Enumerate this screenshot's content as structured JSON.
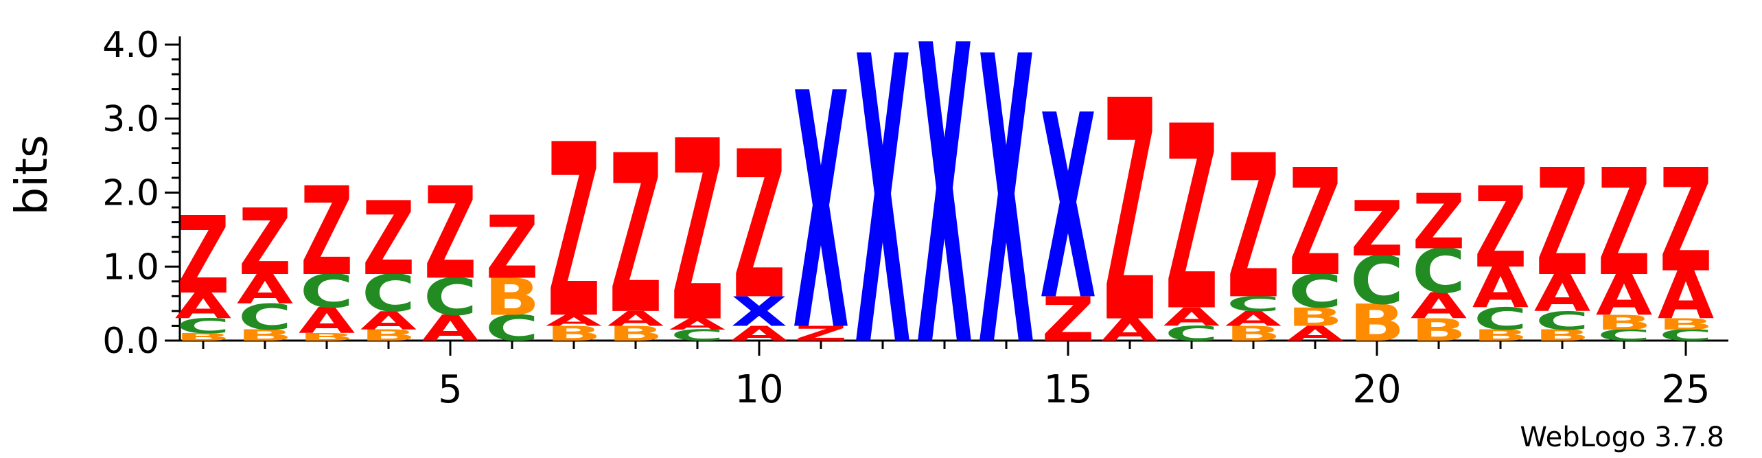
{
  "chart_data": {
    "type": "sequence-logo",
    "ylabel": "bits",
    "ylim": [
      0,
      4.0
    ],
    "yticks": [
      "0.0",
      "1.0",
      "2.0",
      "3.0",
      "4.0"
    ],
    "xticks": [
      5,
      10,
      15,
      20,
      25
    ],
    "footer": "WebLogo 3.7.8",
    "colors": {
      "Z": "#ff0000",
      "A": "#ff0000",
      "X": "#0000ff",
      "C": "#228b22",
      "B": "#ff8c00"
    },
    "positions": [
      {
        "pos": 1,
        "letters": [
          [
            "B",
            0.1
          ],
          [
            "C",
            0.2
          ],
          [
            "A",
            0.35
          ],
          [
            "Z",
            1.05
          ]
        ]
      },
      {
        "pos": 2,
        "letters": [
          [
            "B",
            0.15
          ],
          [
            "C",
            0.35
          ],
          [
            "A",
            0.4
          ],
          [
            "Z",
            0.9
          ]
        ]
      },
      {
        "pos": 3,
        "letters": [
          [
            "B",
            0.1
          ],
          [
            "A",
            0.35
          ],
          [
            "C",
            0.45
          ],
          [
            "Z",
            1.2
          ]
        ]
      },
      {
        "pos": 4,
        "letters": [
          [
            "B",
            0.15
          ],
          [
            "A",
            0.25
          ],
          [
            "C",
            0.5
          ],
          [
            "Z",
            1.0
          ]
        ]
      },
      {
        "pos": 5,
        "letters": [
          [
            "A",
            0.35
          ],
          [
            "C",
            0.5
          ],
          [
            "Z",
            1.25
          ]
        ]
      },
      {
        "pos": 6,
        "letters": [
          [
            "C",
            0.35
          ],
          [
            "B",
            0.5
          ],
          [
            "Z",
            0.85
          ]
        ]
      },
      {
        "pos": 7,
        "letters": [
          [
            "B",
            0.2
          ],
          [
            "A",
            0.15
          ],
          [
            "Z",
            2.35
          ]
        ]
      },
      {
        "pos": 8,
        "letters": [
          [
            "B",
            0.2
          ],
          [
            "A",
            0.2
          ],
          [
            "Z",
            2.15
          ]
        ]
      },
      {
        "pos": 9,
        "letters": [
          [
            "C",
            0.15
          ],
          [
            "A",
            0.15
          ],
          [
            "Z",
            2.45
          ]
        ]
      },
      {
        "pos": 10,
        "letters": [
          [
            "A",
            0.2
          ],
          [
            "X",
            0.4
          ],
          [
            "Z",
            2.0
          ]
        ]
      },
      {
        "pos": 11,
        "letters": [
          [
            "Z",
            0.2
          ],
          [
            "X",
            3.2
          ]
        ]
      },
      {
        "pos": 12,
        "letters": [
          [
            "X",
            3.9
          ]
        ]
      },
      {
        "pos": 13,
        "letters": [
          [
            "X",
            4.05
          ]
        ]
      },
      {
        "pos": 14,
        "letters": [
          [
            "X",
            3.9
          ]
        ]
      },
      {
        "pos": 15,
        "letters": [
          [
            "Z",
            0.6
          ],
          [
            "X",
            2.5
          ]
        ]
      },
      {
        "pos": 16,
        "letters": [
          [
            "A",
            0.3
          ],
          [
            "Z",
            3.0
          ]
        ]
      },
      {
        "pos": 17,
        "letters": [
          [
            "C",
            0.2
          ],
          [
            "A",
            0.25
          ],
          [
            "Z",
            2.5
          ]
        ]
      },
      {
        "pos": 18,
        "letters": [
          [
            "B",
            0.2
          ],
          [
            "A",
            0.2
          ],
          [
            "C",
            0.2
          ],
          [
            "Z",
            1.95
          ]
        ]
      },
      {
        "pos": 19,
        "letters": [
          [
            "A",
            0.2
          ],
          [
            "B",
            0.25
          ],
          [
            "C",
            0.45
          ],
          [
            "Z",
            1.45
          ]
        ]
      },
      {
        "pos": 20,
        "letters": [
          [
            "B",
            0.5
          ],
          [
            "C",
            0.65
          ],
          [
            "Z",
            0.75
          ]
        ]
      },
      {
        "pos": 21,
        "letters": [
          [
            "B",
            0.3
          ],
          [
            "A",
            0.35
          ],
          [
            "C",
            0.6
          ],
          [
            "Z",
            0.75
          ]
        ]
      },
      {
        "pos": 22,
        "letters": [
          [
            "B",
            0.15
          ],
          [
            "C",
            0.3
          ],
          [
            "A",
            0.55
          ],
          [
            "Z",
            1.1
          ]
        ]
      },
      {
        "pos": 23,
        "letters": [
          [
            "B",
            0.15
          ],
          [
            "C",
            0.25
          ],
          [
            "A",
            0.5
          ],
          [
            "Z",
            1.45
          ]
        ]
      },
      {
        "pos": 24,
        "letters": [
          [
            "C",
            0.15
          ],
          [
            "B",
            0.2
          ],
          [
            "A",
            0.55
          ],
          [
            "Z",
            1.45
          ]
        ]
      },
      {
        "pos": 25,
        "letters": [
          [
            "C",
            0.15
          ],
          [
            "B",
            0.15
          ],
          [
            "A",
            0.65
          ],
          [
            "Z",
            1.4
          ]
        ]
      }
    ]
  }
}
